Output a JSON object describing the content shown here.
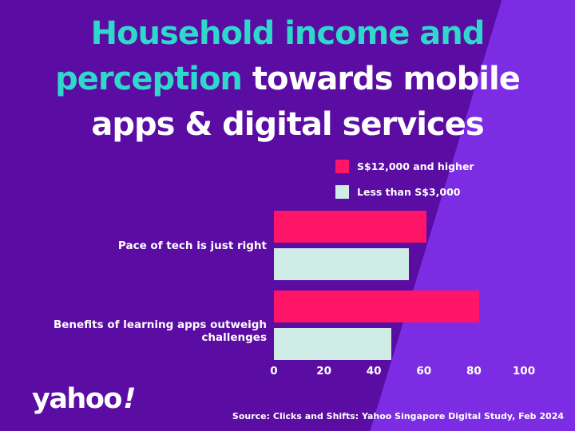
{
  "title": {
    "lines": [
      {
        "teal": "Household income and",
        "white": ""
      },
      {
        "teal": "perception ",
        "white": "towards mobile"
      },
      {
        "teal": "",
        "white": "apps & digital services"
      }
    ]
  },
  "colors": {
    "bg_dark": "#5a0ca3",
    "bg_light": "#7c2de4",
    "teal": "#2fd8cb",
    "pink": "#fe1567",
    "mint": "#cfece6",
    "text": "#ffffff"
  },
  "chart_data": {
    "type": "bar",
    "orientation": "horizontal",
    "categories": [
      "Pace of tech is just right",
      "Benefits of learning apps outweigh challenges"
    ],
    "series": [
      {
        "name": "S$12,000 and higher",
        "color": "#fe1567",
        "values": [
          61,
          82
        ]
      },
      {
        "name": "Less than S$3,000",
        "color": "#cfece6",
        "values": [
          54,
          47
        ]
      }
    ],
    "xlim": [
      0,
      100
    ],
    "ticks": [
      0,
      20,
      40,
      60,
      80,
      100
    ],
    "legend_position": "top-right",
    "grid": false
  },
  "footer": {
    "logo_text": "yahoo",
    "logo_excl": "!",
    "source": "Source: Clicks and Shifts: Yahoo Singapore Digital Study, Feb 2024"
  }
}
